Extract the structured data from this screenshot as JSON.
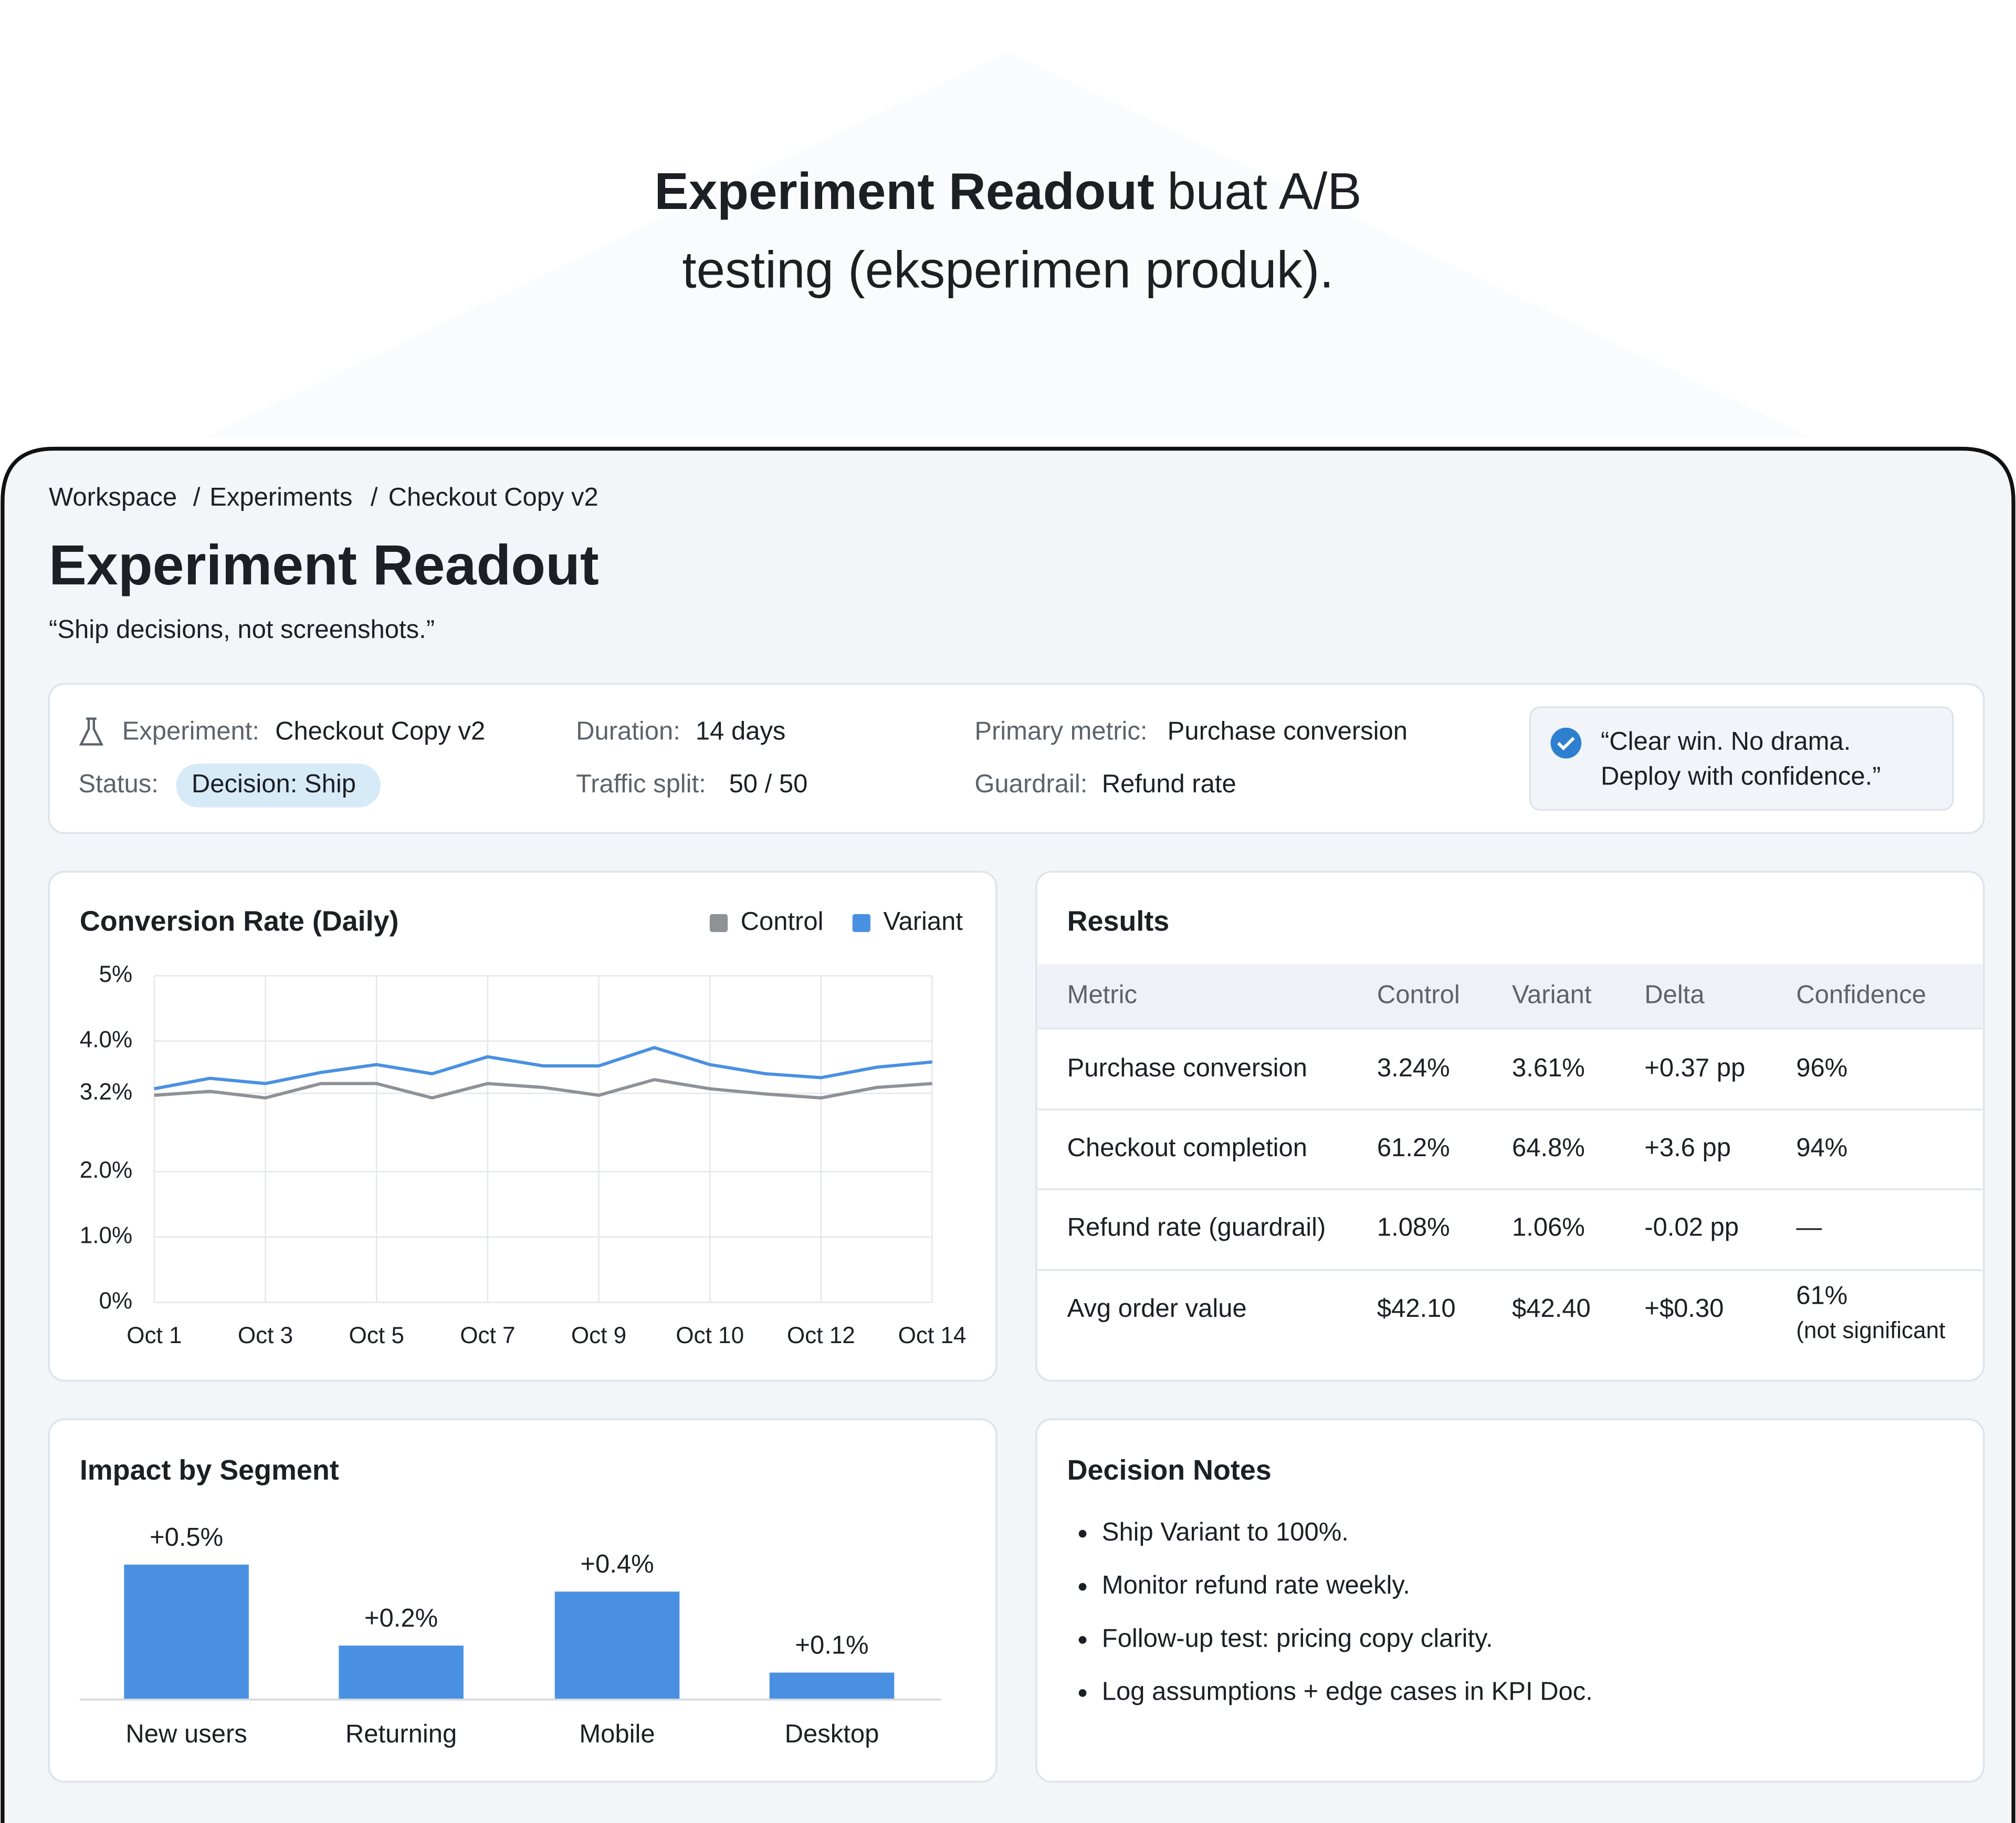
{
  "headline": {
    "bold": "Experiment Readout",
    "line1": "buat A/B",
    "line2": "testing (eksperimen produk)."
  },
  "breadcrumb": {
    "items": [
      "Workspace",
      "Experiments",
      "Checkout Copy v2"
    ],
    "separator": "/"
  },
  "page": {
    "title": "Experiment Readout",
    "tagline": "“Ship decisions, not screenshots.”"
  },
  "summary": {
    "fields": [
      {
        "label": "Experiment:",
        "value": "Checkout Copy v2"
      },
      {
        "label": "Status:",
        "value": "Decision: Ship"
      },
      {
        "label": "Duration:",
        "value": "14 days"
      },
      {
        "label": "Traffic split:",
        "value": "50 / 50"
      },
      {
        "label": "Primary metric:",
        "value": "Purchase conversion"
      },
      {
        "label": "Guardrail:",
        "value": "Refund rate"
      }
    ],
    "quote": [
      "“Clear win. No drama.",
      "Deploy with confidence.”"
    ]
  },
  "chart_data": [
    {
      "type": "line",
      "title": "Conversion Rate (Daily)",
      "categories": [
        "Oct 1",
        null,
        "Oct 3",
        null,
        "Oct 5",
        null,
        "Oct 7",
        null,
        "Oct 9",
        null,
        "Oct 10",
        null,
        "Oct 12",
        null,
        "Oct 14"
      ],
      "series": [
        {
          "name": "Control",
          "color": "#8e9196",
          "values": [
            3.17,
            3.23,
            3.13,
            3.35,
            3.35,
            3.13,
            3.35,
            3.29,
            3.17,
            3.41,
            3.27,
            3.19,
            3.13,
            3.29,
            3.35
          ]
        },
        {
          "name": "Variant",
          "color": "#4a90e2",
          "values": [
            3.27,
            3.43,
            3.35,
            3.52,
            3.64,
            3.5,
            3.76,
            3.62,
            3.62,
            3.9,
            3.64,
            3.5,
            3.44,
            3.6,
            3.68
          ]
        }
      ],
      "ylim": [
        0,
        5
      ],
      "yticks": [
        {
          "value": 5,
          "label": "5%"
        },
        {
          "value": 4,
          "label": "4.0%"
        },
        {
          "value": 3.2,
          "label": "3.2%"
        },
        {
          "value": 2,
          "label": "2.0%"
        },
        {
          "value": 1,
          "label": "1.0%"
        },
        {
          "value": 0,
          "label": "0%"
        }
      ],
      "grid": true,
      "legend": "top-right"
    },
    {
      "type": "bar",
      "title": "Impact by Segment",
      "categories": [
        "New users",
        "Returning",
        "Mobile",
        "Desktop"
      ],
      "values": [
        0.5,
        0.2,
        0.4,
        0.1
      ],
      "value_labels": [
        "+0.5%",
        "+0.2%",
        "+0.4%",
        "+0.1%"
      ],
      "color": "#4a90e2"
    }
  ],
  "results": {
    "title": "Results",
    "columns": [
      "Metric",
      "Control",
      "Variant",
      "Delta",
      "Confidence"
    ],
    "rows": [
      [
        "Purchase conversion",
        "3.24%",
        "3.61%",
        "+0.37 pp",
        "96%"
      ],
      [
        "Checkout completion",
        "61.2%",
        "64.8%",
        "+3.6 pp",
        "94%"
      ],
      [
        "Refund rate (guardrail)",
        "1.08%",
        "1.06%",
        "-0.02 pp",
        "—"
      ],
      [
        "Avg order value",
        "$42.10",
        "$42.40",
        "+$0.30",
        "61%"
      ]
    ],
    "footnote": "(not significant"
  },
  "notes": {
    "title": "Decision Notes",
    "items": [
      "Ship Variant to 100%.",
      "Monitor refund rate weekly.",
      "Follow-up test: pricing copy clarity.",
      "Log assumptions + edge cases in KPI Doc."
    ]
  }
}
